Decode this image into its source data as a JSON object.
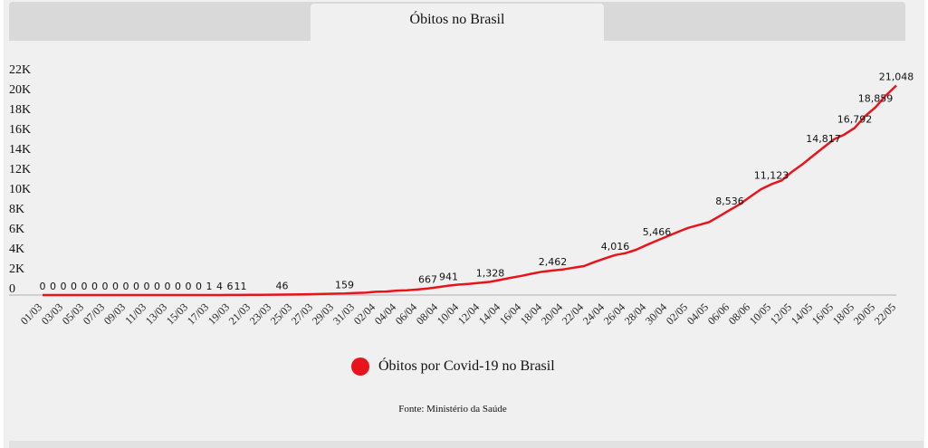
{
  "header": {
    "tab_title": "Óbitos no Brasil"
  },
  "legend": {
    "label": "Óbitos por Covid-19 no Brasil",
    "color": "#e8141c"
  },
  "source": "Fonte: Ministério da Saúde",
  "chart_data": {
    "type": "line",
    "title": "Óbitos no Brasil",
    "xlabel": "",
    "ylabel": "",
    "ylim": [
      0,
      22000
    ],
    "y_ticks": [
      "0",
      "2K",
      "4K",
      "6K",
      "8K",
      "10K",
      "12K",
      "14K",
      "16K",
      "18K",
      "20K",
      "22K"
    ],
    "x_tick_labels": [
      "01/03",
      "03/03",
      "05/03",
      "07/03",
      "09/03",
      "11/03",
      "13/03",
      "15/03",
      "17/03",
      "19/03",
      "21/03",
      "23/03",
      "25/03",
      "27/03",
      "29/03",
      "31/03",
      "02/04",
      "04/04",
      "06/04",
      "08/04",
      "10/04",
      "12/04",
      "14/04",
      "16/04",
      "18/04",
      "20/04",
      "22/04",
      "24/04",
      "26/04",
      "28/04",
      "30/04",
      "02/05",
      "04/05",
      "06/06",
      "08/06",
      "10/05",
      "12/05",
      "14/05",
      "16/05",
      "18/05",
      "20/05",
      "22/05"
    ],
    "series": [
      {
        "name": "Óbitos por Covid-19 no Brasil",
        "color": "#e8141c",
        "values": [
          0,
          0,
          0,
          0,
          0,
          0,
          0,
          0,
          0,
          0,
          0,
          0,
          0,
          0,
          0,
          0,
          1,
          4,
          6,
          11,
          18,
          25,
          34,
          46,
          57,
          77,
          92,
          111,
          136,
          159,
          201,
          240,
          324,
          359,
          445,
          486,
          553,
          667,
          800,
          941,
          1057,
          1124,
          1223,
          1328,
          1532,
          1736,
          1924,
          2141,
          2347,
          2462,
          2575,
          2741,
          2906,
          3313,
          3670,
          4016,
          4205,
          4543,
          5017,
          5466,
          5901,
          6329,
          6750,
          7025,
          7321,
          7921,
          8536,
          9146,
          9897,
          10627,
          11123,
          11519,
          12400,
          13149,
          13993,
          14817,
          15633,
          16118,
          16792,
          17971,
          18859,
          20047,
          21048
        ]
      }
    ],
    "data_labels": [
      {
        "index": 0,
        "text": "0"
      },
      {
        "index": 1,
        "text": "0"
      },
      {
        "index": 2,
        "text": "0"
      },
      {
        "index": 3,
        "text": "0"
      },
      {
        "index": 4,
        "text": "0"
      },
      {
        "index": 5,
        "text": "0"
      },
      {
        "index": 6,
        "text": "0"
      },
      {
        "index": 7,
        "text": "0"
      },
      {
        "index": 8,
        "text": "0"
      },
      {
        "index": 9,
        "text": "0"
      },
      {
        "index": 10,
        "text": "0"
      },
      {
        "index": 11,
        "text": "0"
      },
      {
        "index": 12,
        "text": "0"
      },
      {
        "index": 13,
        "text": "0"
      },
      {
        "index": 14,
        "text": "0"
      },
      {
        "index": 15,
        "text": "0"
      },
      {
        "index": 16,
        "text": "1"
      },
      {
        "index": 17,
        "text": "4"
      },
      {
        "index": 18,
        "text": "6"
      },
      {
        "index": 19,
        "text": "11"
      },
      {
        "index": 23,
        "text": "46"
      },
      {
        "index": 29,
        "text": "159"
      },
      {
        "index": 37,
        "text": "667"
      },
      {
        "index": 39,
        "text": "941"
      },
      {
        "index": 43,
        "text": "1,328"
      },
      {
        "index": 49,
        "text": "2,462"
      },
      {
        "index": 55,
        "text": "4,016"
      },
      {
        "index": 59,
        "text": "5,466"
      },
      {
        "index": 66,
        "text": "8,536"
      },
      {
        "index": 70,
        "text": "11,123"
      },
      {
        "index": 75,
        "text": "14,817"
      },
      {
        "index": 78,
        "text": "16,792"
      },
      {
        "index": 80,
        "text": "18,859"
      },
      {
        "index": 82,
        "text": "21,048"
      }
    ],
    "grid": false,
    "legend_position": "bottom"
  }
}
